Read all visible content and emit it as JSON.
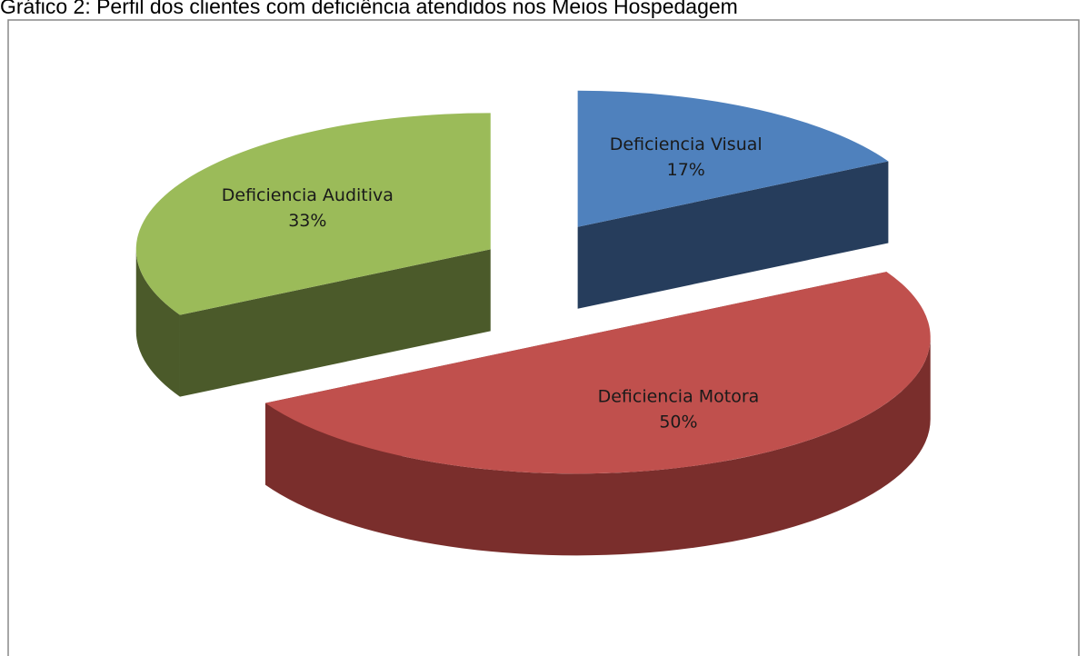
{
  "chart_data": {
    "type": "pie",
    "title": "Gráfico 2: Perfil dos clientes com deficiência atendidos nos Meios Hospedagem",
    "categories": [
      "Deficiencia Visual",
      "Deficiencia Motora",
      "Deficiencia Auditiva"
    ],
    "values": [
      17,
      50,
      33
    ],
    "value_labels": [
      "17%",
      "50%",
      "33%"
    ],
    "colors": [
      "#4f81bd",
      "#c0504d",
      "#9bbb59"
    ],
    "side_colors": [
      "#263d5c",
      "#7a2e2c",
      "#4b5a2a"
    ]
  }
}
